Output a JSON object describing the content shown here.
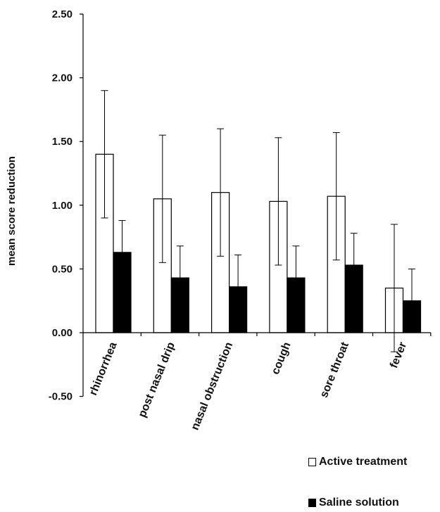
{
  "chart_data": {
    "type": "bar",
    "ylabel": "mean score reduction",
    "ylim": [
      -0.5,
      2.5
    ],
    "yticks": [
      "2.50",
      "2.00",
      "1.50",
      "1.00",
      "0.50",
      "0.00",
      "-0.50"
    ],
    "ytick_values": [
      2.5,
      2.0,
      1.5,
      1.0,
      0.5,
      0.0,
      -0.5
    ],
    "categories": [
      "rhinorrhea",
      "post nasal drip",
      "nasal obstruction",
      "cough",
      "sore throat",
      "fever"
    ],
    "series": [
      {
        "name": "Active treatment",
        "color": "#ffffff",
        "values": [
          1.4,
          1.05,
          1.1,
          1.03,
          1.07,
          0.35
        ],
        "error": [
          0.5,
          0.5,
          0.5,
          0.5,
          0.5,
          0.5
        ]
      },
      {
        "name": "Saline solution",
        "color": "#000000",
        "values": [
          0.63,
          0.43,
          0.36,
          0.43,
          0.53,
          0.25
        ],
        "error": [
          0.25,
          0.25,
          0.25,
          0.25,
          0.25,
          0.25
        ]
      }
    ],
    "grid": false,
    "legend_position": "bottom-right"
  }
}
